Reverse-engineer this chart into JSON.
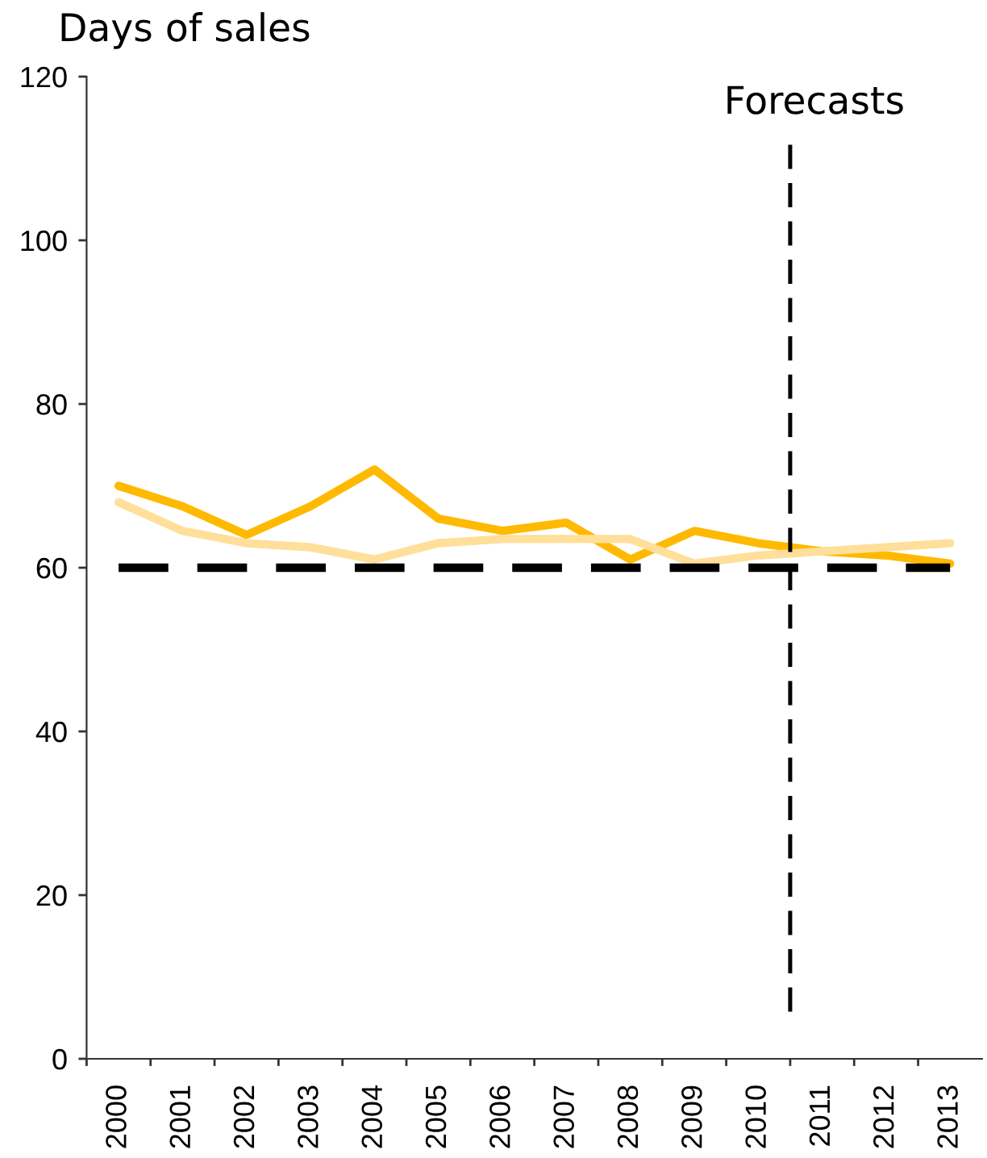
{
  "chart_data": {
    "type": "line",
    "ylabel": "Days of sales",
    "x": [
      2000,
      2001,
      2002,
      2003,
      2004,
      2005,
      2006,
      2007,
      2008,
      2009,
      2010,
      2011,
      2012,
      2013
    ],
    "xlim": [
      1999.5,
      2013.5
    ],
    "xticks": [
      {
        "value": 1999.5,
        "label": null
      },
      2000,
      {
        "value": 2000.5,
        "label": null
      },
      2001,
      {
        "value": 2001.5,
        "label": null
      },
      2002,
      {
        "value": 2002.5,
        "label": null
      },
      2003,
      {
        "value": 2003.5,
        "label": null
      },
      2004,
      {
        "value": 2004.5,
        "label": null
      },
      2005,
      {
        "value": 2005.5,
        "label": null
      },
      2006,
      {
        "value": 2006.5,
        "label": null
      },
      2007,
      {
        "value": 2007.5,
        "label": null
      },
      2008,
      {
        "value": 2008.5,
        "label": null
      },
      2009,
      {
        "value": 2009.5,
        "label": null
      },
      2010,
      {
        "value": 2010.5,
        "label": null
      },
      2011,
      {
        "value": 2011.5,
        "label": null
      },
      2012,
      {
        "value": 2012.5,
        "label": null
      },
      2013
    ],
    "ylim": [
      0,
      120
    ],
    "yticks": [
      0,
      20,
      40,
      60,
      80,
      100,
      120
    ],
    "series": [
      {
        "color": "#ffb900",
        "values": [
          70,
          67.5,
          64,
          67.5,
          72,
          66,
          64.5,
          65.5,
          61,
          64.5,
          63,
          62,
          61.5,
          60.5
        ]
      },
      {
        "color": "#ffdf99",
        "values": [
          68,
          64.5,
          63,
          62.5,
          61,
          63,
          63.5,
          63.5,
          63.5,
          60.5,
          61.5,
          62,
          62.5,
          63
        ]
      },
      {
        "color": "#000000",
        "line_style": "dashed",
        "values": [
          60,
          60,
          60,
          60,
          60,
          60,
          60,
          60,
          60,
          60,
          60,
          60,
          60,
          60
        ]
      }
    ],
    "ref_lines": [
      {
        "axis": "x",
        "value": 2010.5,
        "label": "Forecasts",
        "color": "#000000",
        "line_style": "dashed"
      }
    ]
  }
}
